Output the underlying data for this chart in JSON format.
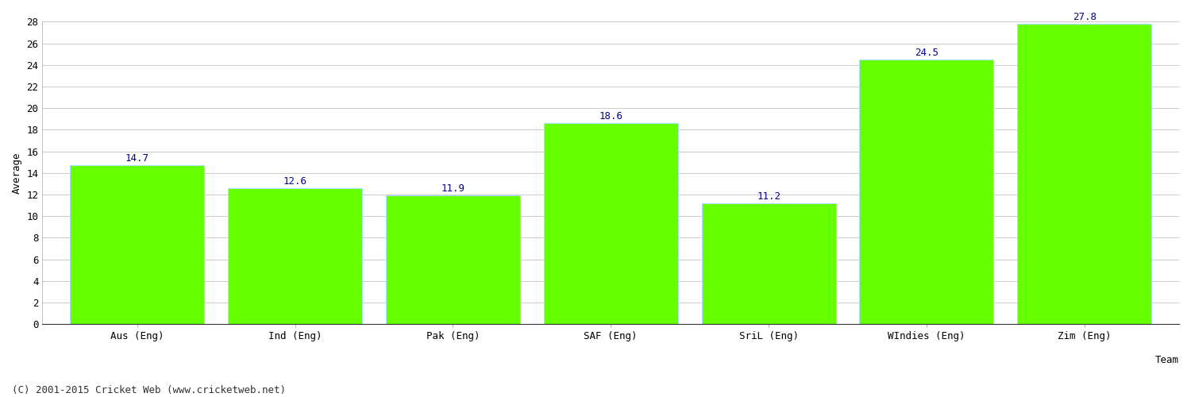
{
  "categories": [
    "Aus (Eng)",
    "Ind (Eng)",
    "Pak (Eng)",
    "SAF (Eng)",
    "SriL (Eng)",
    "WIndies (Eng)",
    "Zim (Eng)"
  ],
  "values": [
    14.7,
    12.6,
    11.9,
    18.6,
    11.2,
    24.5,
    27.8
  ],
  "bar_color": "#66ff00",
  "bar_edge_color": "#aaddff",
  "label_color": "#00008B",
  "xlabel": "Team",
  "ylabel": "Average",
  "ylim": [
    0,
    28
  ],
  "yticks": [
    0,
    2,
    4,
    6,
    8,
    10,
    12,
    14,
    16,
    18,
    20,
    22,
    24,
    26,
    28
  ],
  "grid_color": "#cccccc",
  "background_color": "#ffffff",
  "footer": "(C) 2001-2015 Cricket Web (www.cricketweb.net)",
  "label_fontsize": 9,
  "axis_label_fontsize": 9,
  "tick_fontsize": 9,
  "footer_fontsize": 9,
  "bar_width": 0.85
}
